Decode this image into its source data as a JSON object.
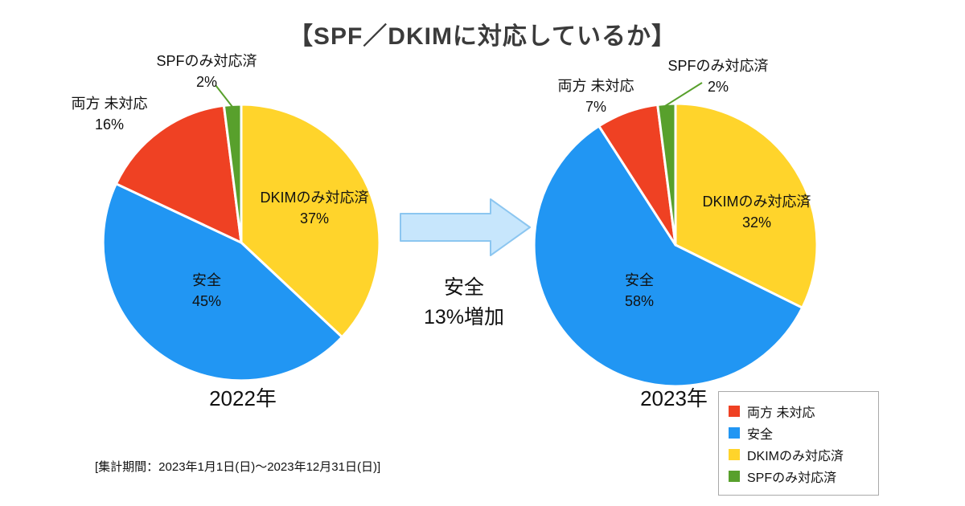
{
  "title": "【SPF／DKIMに対応しているか】",
  "chart_data": [
    {
      "type": "pie",
      "title": "2022年",
      "start_angle_deg": 0,
      "direction": "clockwise",
      "slices": [
        {
          "label": "DKIMのみ対応済",
          "value": 37,
          "pct": "37%",
          "color": "#FFD42B"
        },
        {
          "label": "安全",
          "value": 45,
          "pct": "45%",
          "color": "#2196F3"
        },
        {
          "label": "両方 未対応",
          "value": 16,
          "pct": "16%",
          "color": "#EF4123"
        },
        {
          "label": "SPFのみ対応済",
          "value": 2,
          "pct": "2%",
          "color": "#58A02C"
        }
      ]
    },
    {
      "type": "pie",
      "title": "2023年",
      "start_angle_deg": 0,
      "direction": "clockwise",
      "slices": [
        {
          "label": "DKIMのみ対応済",
          "value": 32,
          "pct": "32%",
          "color": "#FFD42B"
        },
        {
          "label": "安全",
          "value": 58,
          "pct": "58%",
          "color": "#2196F3"
        },
        {
          "label": "両方 未対応",
          "value": 7,
          "pct": "7%",
          "color": "#EF4123"
        },
        {
          "label": "SPFのみ対応済",
          "value": 2,
          "pct": "2%",
          "color": "#58A02C"
        }
      ]
    }
  ],
  "annotation": {
    "line1": "安全",
    "line2": "13%増加"
  },
  "arrow": {
    "fill": "#C7E6FC",
    "stroke": "#8CC6F0"
  },
  "legend": {
    "items": [
      {
        "label": "両方 未対応",
        "color": "#EF4123"
      },
      {
        "label": "安全",
        "color": "#2196F3"
      },
      {
        "label": "DKIMのみ対応済",
        "color": "#FFD42B"
      },
      {
        "label": "SPFのみ対応済",
        "color": "#58A02C"
      }
    ]
  },
  "footer": {
    "text": "[集計期間：2023年1月1日(日)〜2023年12月31日(日)]"
  }
}
